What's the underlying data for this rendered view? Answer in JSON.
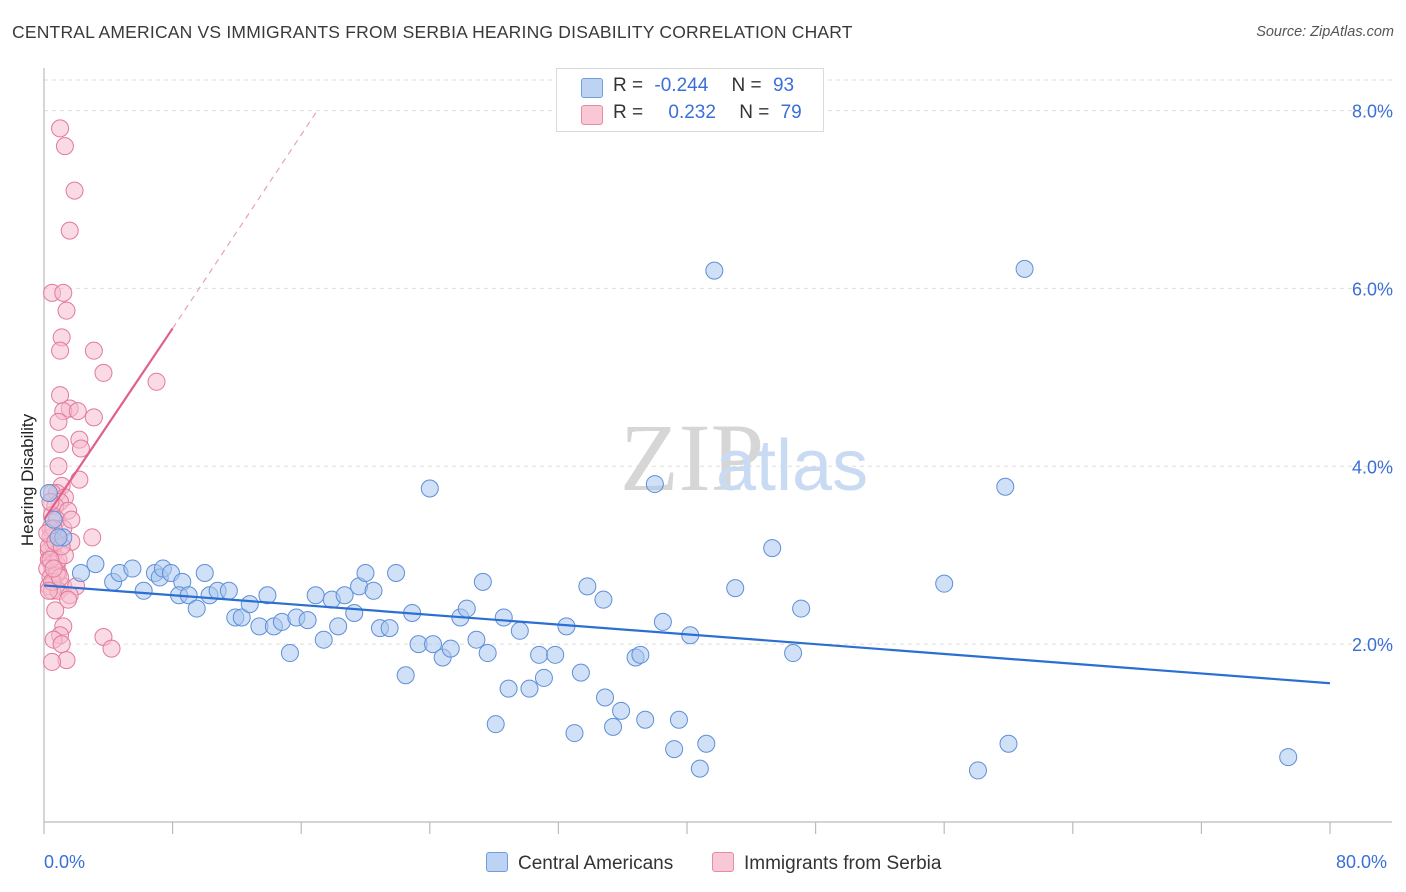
{
  "title": "CENTRAL AMERICAN VS IMMIGRANTS FROM SERBIA HEARING DISABILITY CORRELATION CHART",
  "source": "Source: ZipAtlas.com",
  "watermark": {
    "zip": "ZIP",
    "atlas": "atlas"
  },
  "legend": {
    "row1": {
      "r_label": "R =",
      "r_value": "-0.244",
      "n_label": "N =",
      "n_value": "93"
    },
    "row2": {
      "r_label": "R =",
      "r_value": "0.232",
      "n_label": "N =",
      "n_value": "79"
    }
  },
  "bottom_legend": {
    "series1": "Central Americans",
    "series2": "Immigrants from Serbia"
  },
  "colors": {
    "blue_fill": "#a9c6ef",
    "blue_stroke": "#5e8fd8",
    "blue_line": "#2a6fd1",
    "pink_fill": "#f6bccd",
    "pink_stroke": "#e27a9b",
    "pink_line": "#e0608a",
    "tick_text": "#3a6fd8",
    "grid": "#dddddd"
  },
  "chart_data": {
    "type": "scatter",
    "title": "CENTRAL AMERICAN VS IMMIGRANTS FROM SERBIA HEARING DISABILITY CORRELATION CHART",
    "xlabel": "",
    "ylabel": "Hearing Disability",
    "xlim": [
      0,
      80
    ],
    "ylim": [
      0,
      8.4
    ],
    "x_tick_labels": [
      "0.0%",
      "80.0%"
    ],
    "y_ticks": [
      2.0,
      4.0,
      6.0,
      8.0
    ],
    "y_tick_labels": [
      "2.0%",
      "4.0%",
      "6.0%",
      "8.0%"
    ],
    "grid": "horizontal dashed",
    "legend_position": "top-center",
    "series": [
      {
        "name": "Central Americans",
        "color": "#5e8fd8",
        "trend": {
          "x": [
            0,
            80
          ],
          "y": [
            2.66,
            1.56
          ]
        },
        "points": [
          [
            0.3,
            3.7
          ],
          [
            0.6,
            3.4
          ],
          [
            1.2,
            3.2
          ],
          [
            2.3,
            2.8
          ],
          [
            3.2,
            2.9
          ],
          [
            4.3,
            2.7
          ],
          [
            4.7,
            2.8
          ],
          [
            5.5,
            2.85
          ],
          [
            6.2,
            2.6
          ],
          [
            6.9,
            2.8
          ],
          [
            7.2,
            2.75
          ],
          [
            7.4,
            2.85
          ],
          [
            7.9,
            2.8
          ],
          [
            8.6,
            2.7
          ],
          [
            8.4,
            2.55
          ],
          [
            9.0,
            2.55
          ],
          [
            9.5,
            2.4
          ],
          [
            10.0,
            2.8
          ],
          [
            10.3,
            2.55
          ],
          [
            10.8,
            2.6
          ],
          [
            11.5,
            2.6
          ],
          [
            11.9,
            2.3
          ],
          [
            12.3,
            2.3
          ],
          [
            12.8,
            2.45
          ],
          [
            13.4,
            2.2
          ],
          [
            13.9,
            2.55
          ],
          [
            14.3,
            2.2
          ],
          [
            14.8,
            2.25
          ],
          [
            15.3,
            1.9
          ],
          [
            15.7,
            2.3
          ],
          [
            16.4,
            2.27
          ],
          [
            16.9,
            2.55
          ],
          [
            17.4,
            2.05
          ],
          [
            17.9,
            2.5
          ],
          [
            18.3,
            2.2
          ],
          [
            18.7,
            2.55
          ],
          [
            19.3,
            2.35
          ],
          [
            19.6,
            2.65
          ],
          [
            20.0,
            2.8
          ],
          [
            20.5,
            2.6
          ],
          [
            20.9,
            2.18
          ],
          [
            21.5,
            2.18
          ],
          [
            21.9,
            2.8
          ],
          [
            22.5,
            1.65
          ],
          [
            22.9,
            2.35
          ],
          [
            23.3,
            2.0
          ],
          [
            24.0,
            3.75
          ],
          [
            24.2,
            2.0
          ],
          [
            24.8,
            1.85
          ],
          [
            25.3,
            1.95
          ],
          [
            25.9,
            2.3
          ],
          [
            26.3,
            2.4
          ],
          [
            26.9,
            2.05
          ],
          [
            27.3,
            2.7
          ],
          [
            27.6,
            1.9
          ],
          [
            28.1,
            1.1
          ],
          [
            28.6,
            2.3
          ],
          [
            28.9,
            1.5
          ],
          [
            29.6,
            2.15
          ],
          [
            30.2,
            1.5
          ],
          [
            30.8,
            1.88
          ],
          [
            31.1,
            1.62
          ],
          [
            31.8,
            1.88
          ],
          [
            32.5,
            2.2
          ],
          [
            33.0,
            1.0
          ],
          [
            33.4,
            1.68
          ],
          [
            33.8,
            2.65
          ],
          [
            34.8,
            2.5
          ],
          [
            34.9,
            1.4
          ],
          [
            35.4,
            1.07
          ],
          [
            35.9,
            1.25
          ],
          [
            36.8,
            1.85
          ],
          [
            37.1,
            1.88
          ],
          [
            37.4,
            1.15
          ],
          [
            38.0,
            3.8
          ],
          [
            38.5,
            2.25
          ],
          [
            39.2,
            0.82
          ],
          [
            39.5,
            1.15
          ],
          [
            40.2,
            2.1
          ],
          [
            40.8,
            0.6
          ],
          [
            41.2,
            0.88
          ],
          [
            41.7,
            6.2
          ],
          [
            43.0,
            2.63
          ],
          [
            45.3,
            3.08
          ],
          [
            46.6,
            1.9
          ],
          [
            47.1,
            2.4
          ],
          [
            56.0,
            2.68
          ],
          [
            58.1,
            0.58
          ],
          [
            59.8,
            3.77
          ],
          [
            60.0,
            0.88
          ],
          [
            61.0,
            6.22
          ],
          [
            77.4,
            0.73
          ],
          [
            0.9,
            3.2
          ]
        ]
      },
      {
        "name": "Immigrants from Serbia",
        "color": "#e27a9b",
        "trend": {
          "x": [
            0,
            8.0
          ],
          "y": [
            3.4,
            5.55
          ]
        },
        "trend_dashed": {
          "x": [
            8.0,
            17.0
          ],
          "y": [
            5.55,
            8.0
          ]
        },
        "points": [
          [
            1.0,
            7.8
          ],
          [
            1.3,
            7.6
          ],
          [
            1.9,
            7.1
          ],
          [
            1.6,
            6.65
          ],
          [
            0.5,
            5.95
          ],
          [
            1.2,
            5.95
          ],
          [
            1.4,
            5.75
          ],
          [
            1.1,
            5.45
          ],
          [
            1.0,
            5.3
          ],
          [
            3.1,
            5.3
          ],
          [
            3.7,
            5.05
          ],
          [
            7.0,
            4.95
          ],
          [
            1.0,
            4.8
          ],
          [
            1.6,
            4.65
          ],
          [
            1.2,
            4.62
          ],
          [
            2.1,
            4.62
          ],
          [
            3.1,
            4.55
          ],
          [
            0.9,
            4.5
          ],
          [
            2.2,
            4.3
          ],
          [
            1.0,
            4.25
          ],
          [
            2.3,
            4.2
          ],
          [
            0.9,
            4.0
          ],
          [
            2.2,
            3.85
          ],
          [
            1.1,
            3.78
          ],
          [
            0.8,
            3.7
          ],
          [
            0.5,
            3.7
          ],
          [
            1.3,
            3.65
          ],
          [
            1.0,
            3.6
          ],
          [
            0.7,
            3.55
          ],
          [
            1.5,
            3.5
          ],
          [
            0.5,
            3.45
          ],
          [
            0.8,
            3.4
          ],
          [
            1.2,
            3.3
          ],
          [
            0.4,
            3.3
          ],
          [
            3.0,
            3.2
          ],
          [
            0.9,
            3.2
          ],
          [
            0.4,
            3.2
          ],
          [
            1.7,
            3.15
          ],
          [
            0.6,
            3.1
          ],
          [
            0.3,
            3.05
          ],
          [
            0.6,
            3.0
          ],
          [
            0.3,
            2.95
          ],
          [
            0.8,
            2.9
          ],
          [
            0.5,
            2.9
          ],
          [
            0.2,
            2.85
          ],
          [
            0.9,
            2.8
          ],
          [
            0.4,
            2.75
          ],
          [
            0.6,
            2.7
          ],
          [
            0.3,
            2.65
          ],
          [
            1.2,
            2.65
          ],
          [
            2.0,
            2.65
          ],
          [
            0.5,
            2.6
          ],
          [
            0.9,
            2.6
          ],
          [
            1.6,
            2.55
          ],
          [
            1.5,
            2.5
          ],
          [
            0.7,
            2.38
          ],
          [
            1.2,
            2.2
          ],
          [
            1.0,
            2.1
          ],
          [
            3.7,
            2.08
          ],
          [
            0.6,
            2.05
          ],
          [
            1.1,
            2.0
          ],
          [
            4.2,
            1.95
          ],
          [
            1.4,
            1.82
          ],
          [
            0.5,
            1.8
          ],
          [
            0.6,
            3.3
          ],
          [
            0.3,
            3.1
          ],
          [
            0.8,
            2.8
          ],
          [
            0.4,
            3.6
          ],
          [
            1.7,
            3.4
          ],
          [
            0.2,
            3.25
          ],
          [
            0.9,
            2.95
          ],
          [
            0.5,
            2.7
          ],
          [
            1.3,
            3.0
          ],
          [
            0.3,
            2.6
          ],
          [
            0.7,
            3.15
          ],
          [
            1.0,
            2.75
          ],
          [
            0.4,
            2.95
          ],
          [
            1.1,
            3.1
          ],
          [
            0.6,
            2.85
          ]
        ]
      }
    ]
  }
}
